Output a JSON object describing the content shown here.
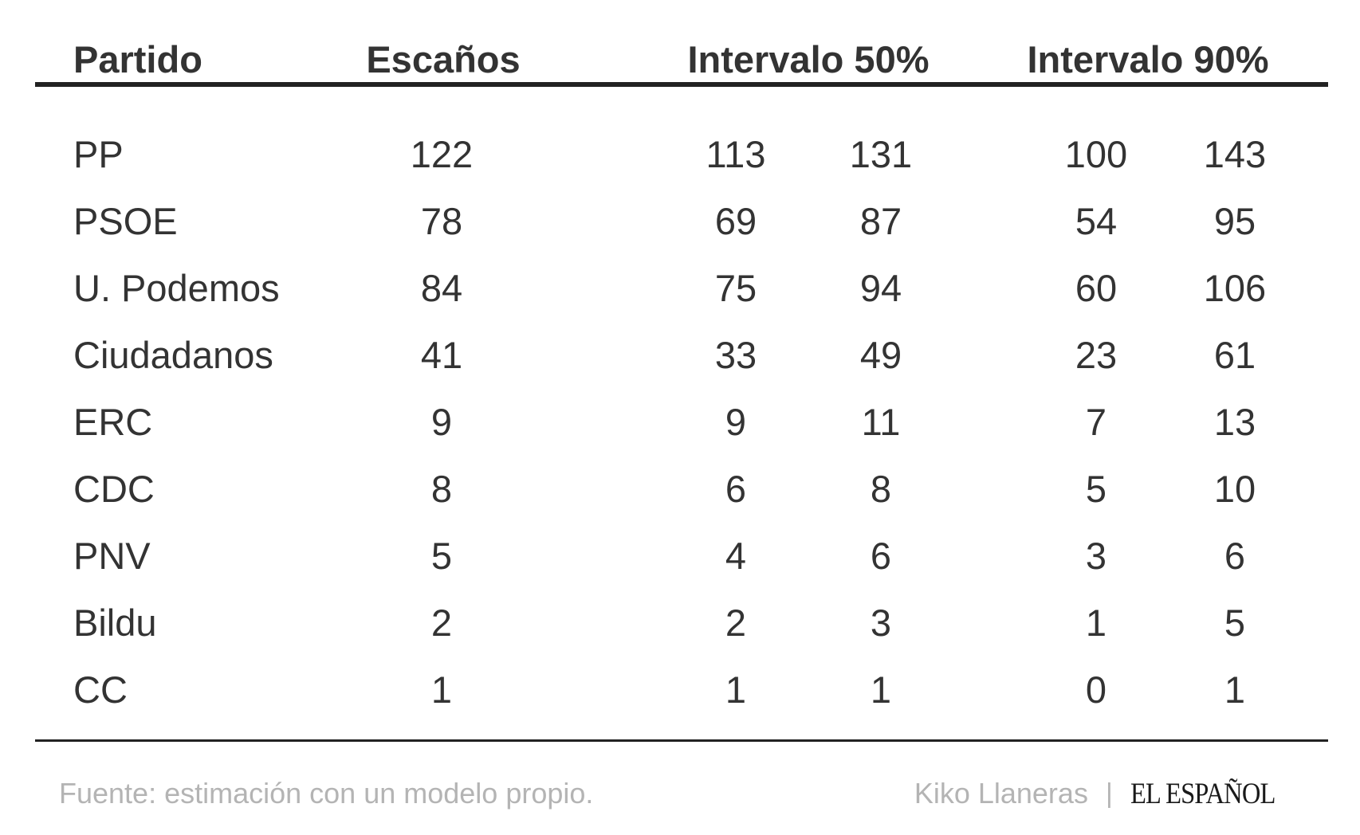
{
  "table": {
    "headers": {
      "party": "Partido",
      "seats": "Escaños",
      "interval50": "Intervalo 50%",
      "interval90": "Intervalo 90%"
    },
    "rows": [
      {
        "party": "PP",
        "seats": "122",
        "i50_low": "113",
        "i50_high": "131",
        "i90_low": "100",
        "i90_high": "143"
      },
      {
        "party": "PSOE",
        "seats": "78",
        "i50_low": "69",
        "i50_high": "87",
        "i90_low": "54",
        "i90_high": "95"
      },
      {
        "party": "U. Podemos",
        "seats": "84",
        "i50_low": "75",
        "i50_high": "94",
        "i90_low": "60",
        "i90_high": "106"
      },
      {
        "party": "Ciudadanos",
        "seats": "41",
        "i50_low": "33",
        "i50_high": "49",
        "i90_low": "23",
        "i90_high": "61"
      },
      {
        "party": "ERC",
        "seats": "9",
        "i50_low": "9",
        "i50_high": "11",
        "i90_low": "7",
        "i90_high": "13"
      },
      {
        "party": "CDC",
        "seats": "8",
        "i50_low": "6",
        "i50_high": "8",
        "i90_low": "5",
        "i90_high": "10"
      },
      {
        "party": "PNV",
        "seats": "5",
        "i50_low": "4",
        "i50_high": "6",
        "i90_low": "3",
        "i90_high": "6"
      },
      {
        "party": "Bildu",
        "seats": "2",
        "i50_low": "2",
        "i50_high": "3",
        "i90_low": "1",
        "i90_high": "5"
      },
      {
        "party": "CC",
        "seats": "1",
        "i50_low": "1",
        "i50_high": "1",
        "i90_low": "0",
        "i90_high": "1"
      }
    ]
  },
  "footer": {
    "source": "Fuente: estimación con un modelo propio.",
    "author": "Kiko Llaneras",
    "separator": "|",
    "logo_text": "EL ESPAÑOL"
  },
  "colors": {
    "text": "#333333",
    "rule": "#222222",
    "muted": "#b4b4b4"
  }
}
